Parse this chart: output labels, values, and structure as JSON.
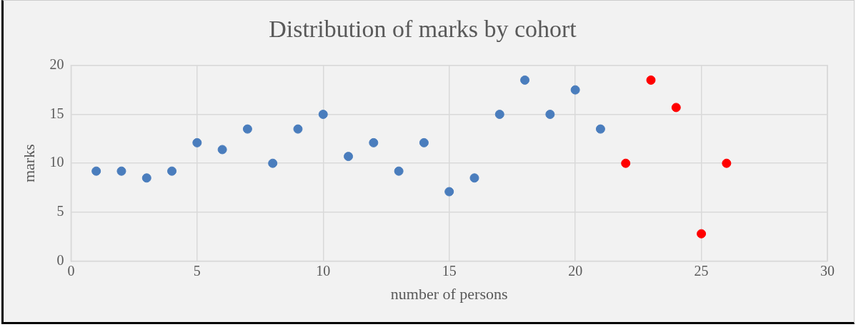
{
  "chart_data": {
    "type": "scatter",
    "title": "Distribution of marks by cohort",
    "xlabel": "number of persons",
    "ylabel": "marks",
    "series": [
      {
        "color": "#4a7dbd",
        "x": [
          1,
          2,
          3,
          4,
          5,
          6,
          7,
          8,
          9,
          10,
          11,
          12,
          13,
          14,
          15,
          16,
          17,
          18,
          19,
          20,
          21
        ],
        "values": [
          9.2,
          9.2,
          8.5,
          9.2,
          12.1,
          11.4,
          13.5,
          10,
          13.5,
          15,
          10.7,
          12.1,
          9.2,
          12.1,
          7.1,
          8.5,
          15,
          18.5,
          15,
          17.5,
          13.5
        ]
      },
      {
        "color": "#ff0000",
        "x": [
          22,
          23,
          24,
          25,
          26
        ],
        "values": [
          10,
          18.5,
          15.7,
          2.8,
          10
        ]
      }
    ],
    "xlim": [
      0,
      30
    ],
    "xticks": [
      0,
      5,
      10,
      15,
      20,
      25,
      30
    ],
    "ylim": [
      0,
      20
    ],
    "yticks": [
      0,
      5,
      10,
      15,
      20
    ],
    "grid": true,
    "legend": false,
    "marker": "circle"
  }
}
